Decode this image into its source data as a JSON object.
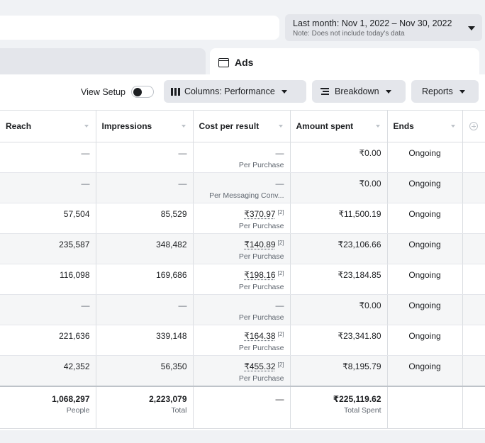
{
  "date_range": {
    "label": "Last month: Nov 1, 2022 – Nov 30, 2022",
    "note": "Note: Does not include today's data"
  },
  "tab": {
    "label": "Ads"
  },
  "toolbar": {
    "view_setup": "View Setup",
    "columns": "Columns: Performance",
    "breakdown": "Breakdown",
    "reports": "Reports"
  },
  "columns": [
    "Reach",
    "Impressions",
    "Cost per result",
    "Amount spent",
    "Ends"
  ],
  "rows": [
    {
      "reach": "—",
      "impressions": "—",
      "cost": "—",
      "cost_sup": "",
      "cost_type": "Per Purchase",
      "amount": "₹0.00",
      "ends": "Ongoing"
    },
    {
      "reach": "—",
      "impressions": "—",
      "cost": "—",
      "cost_sup": "",
      "cost_type": "Per Messaging Conv...",
      "amount": "₹0.00",
      "ends": "Ongoing"
    },
    {
      "reach": "57,504",
      "impressions": "85,529",
      "cost": "₹370.97",
      "cost_sup": "[2]",
      "cost_type": "Per Purchase",
      "amount": "₹11,500.19",
      "ends": "Ongoing"
    },
    {
      "reach": "235,587",
      "impressions": "348,482",
      "cost": "₹140.89",
      "cost_sup": "[2]",
      "cost_type": "Per Purchase",
      "amount": "₹23,106.66",
      "ends": "Ongoing"
    },
    {
      "reach": "116,098",
      "impressions": "169,686",
      "cost": "₹198.16",
      "cost_sup": "[2]",
      "cost_type": "Per Purchase",
      "amount": "₹23,184.85",
      "ends": "Ongoing"
    },
    {
      "reach": "—",
      "impressions": "—",
      "cost": "—",
      "cost_sup": "",
      "cost_type": "Per Purchase",
      "amount": "₹0.00",
      "ends": "Ongoing"
    },
    {
      "reach": "221,636",
      "impressions": "339,148",
      "cost": "₹164.38",
      "cost_sup": "[2]",
      "cost_type": "Per Purchase",
      "amount": "₹23,341.80",
      "ends": "Ongoing"
    },
    {
      "reach": "42,352",
      "impressions": "56,350",
      "cost": "₹455.32",
      "cost_sup": "[2]",
      "cost_type": "Per Purchase",
      "amount": "₹8,195.79",
      "ends": "Ongoing"
    }
  ],
  "totals": {
    "reach": "1,068,297",
    "reach_sub": "People",
    "impressions": "2,223,079",
    "impressions_sub": "Total",
    "cost": "—",
    "amount": "₹225,119.62",
    "amount_sub": "Total Spent"
  }
}
